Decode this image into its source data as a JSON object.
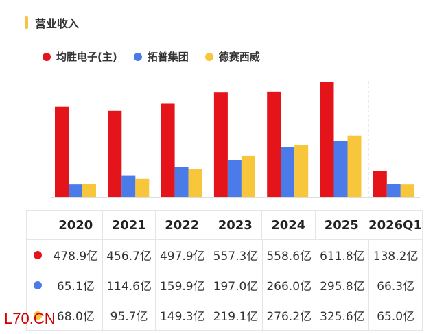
{
  "section": {
    "title": "营业收入",
    "accent_color": "#f5c542"
  },
  "chart_data": {
    "type": "bar",
    "categories": [
      "2020",
      "2021",
      "2022",
      "2023",
      "2024",
      "2025",
      "2026Q1"
    ],
    "series": [
      {
        "name": "均胜电子(主)",
        "color": "#e5141b",
        "values": [
          478.9,
          456.7,
          497.9,
          557.3,
          558.6,
          611.8,
          138.2
        ]
      },
      {
        "name": "拓普集团",
        "color": "#4a7be8",
        "values": [
          65.1,
          114.6,
          159.9,
          197.0,
          266.0,
          295.8,
          66.3
        ]
      },
      {
        "name": "德赛西威",
        "color": "#f8c63b",
        "values": [
          68.0,
          95.7,
          149.3,
          219.1,
          276.2,
          325.6,
          65.0
        ]
      }
    ],
    "ylim": [
      0,
      620
    ],
    "grid": false,
    "legend": "top-left"
  },
  "table": {
    "rows": [
      [
        "478.9亿",
        "456.7亿",
        "497.9亿",
        "557.3亿",
        "558.6亿",
        "611.8亿",
        "138.2亿"
      ],
      [
        "65.1亿",
        "114.6亿",
        "159.9亿",
        "197.0亿",
        "266.0亿",
        "295.8亿",
        "66.3亿"
      ],
      [
        "68.0亿",
        "95.7亿",
        "149.3亿",
        "219.1亿",
        "276.2亿",
        "325.6亿",
        "65.0亿"
      ]
    ]
  },
  "watermark": "L70.CN"
}
